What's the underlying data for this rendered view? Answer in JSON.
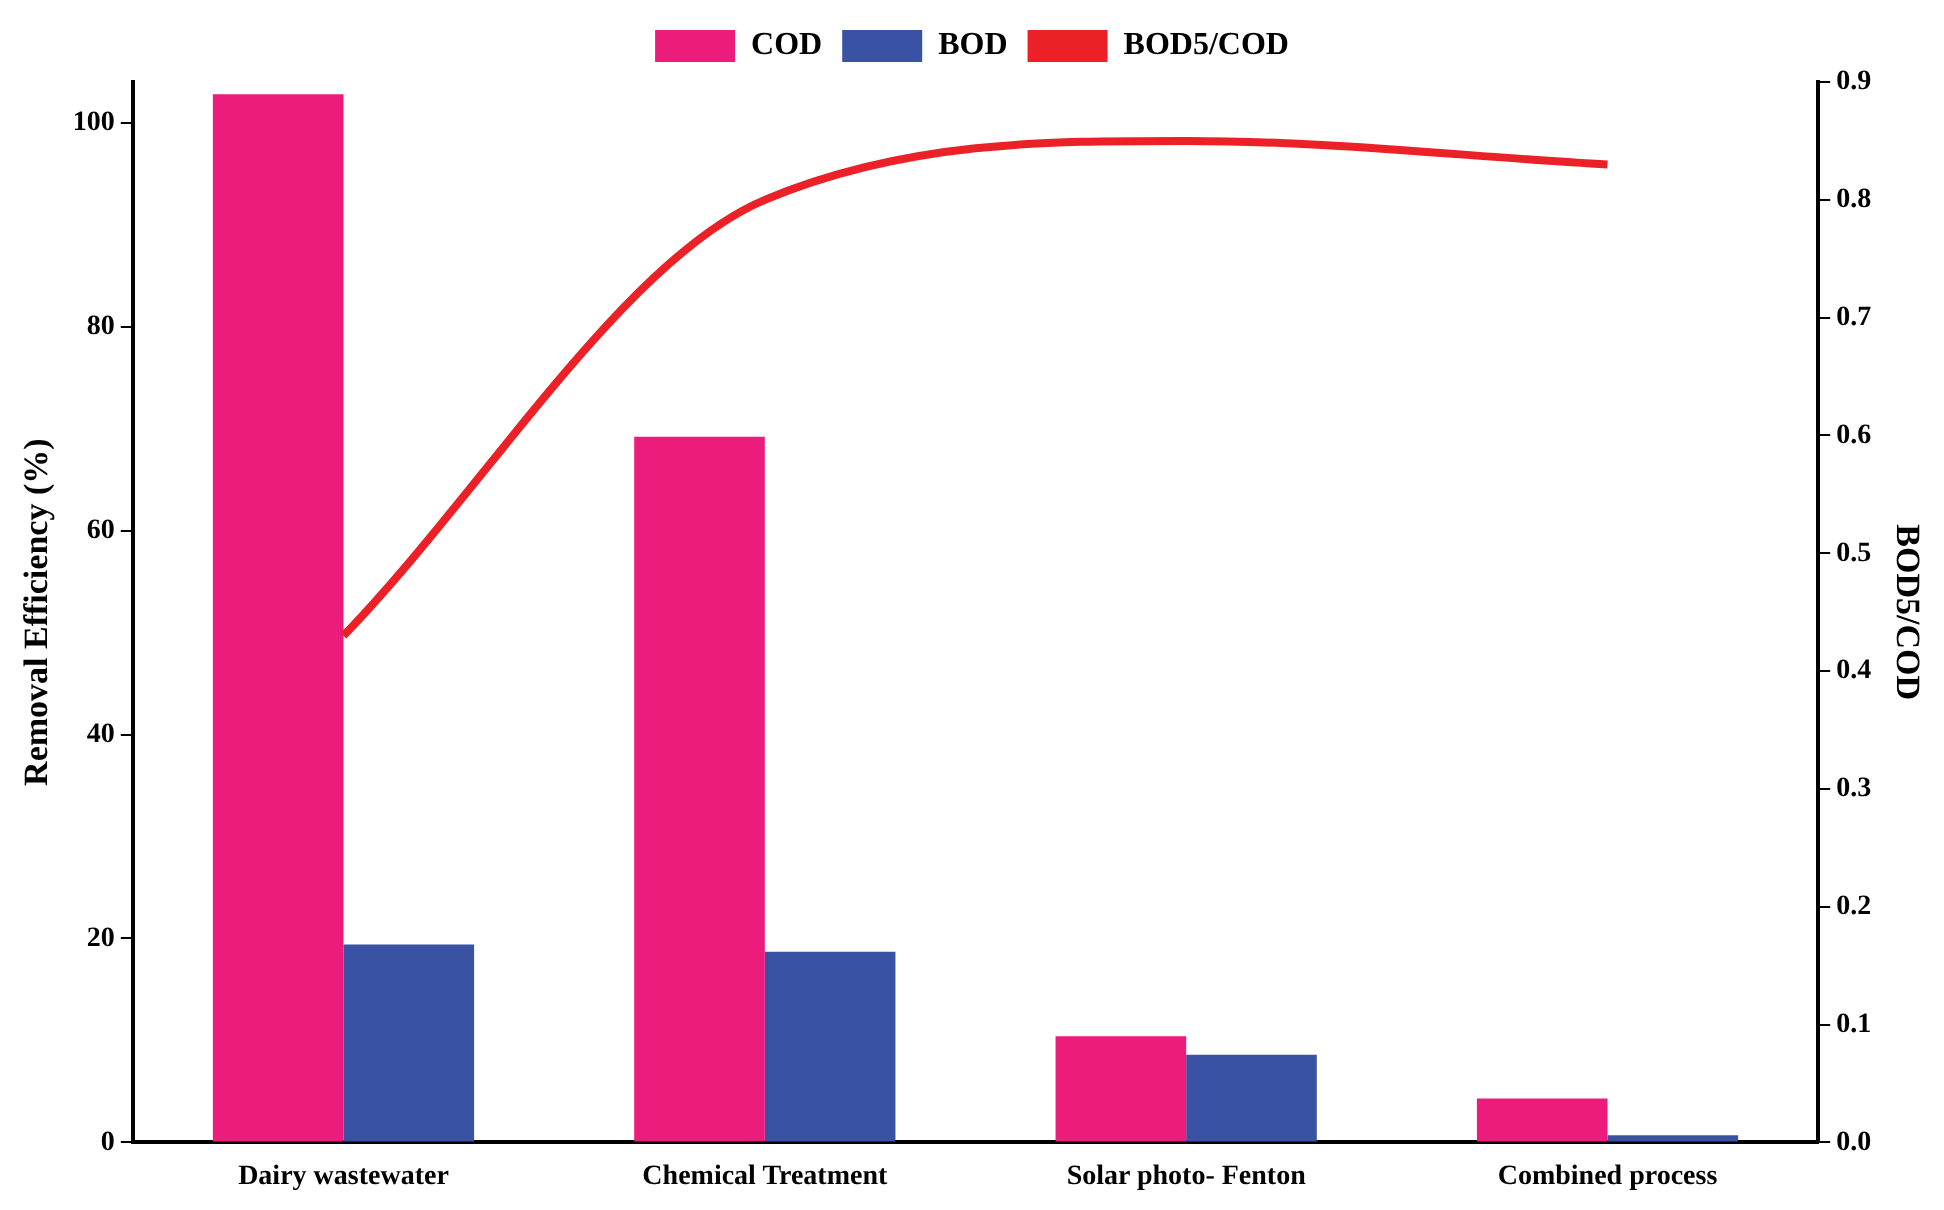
{
  "chart_data": {
    "type": "bar",
    "categories": [
      "Dairy wastewater",
      "Chemical Treatment",
      "Solar photo- Fenton",
      "Combined process"
    ],
    "ylabel": "Removal Efficiency (%)",
    "y2label": "BOD5/COD",
    "series": [
      {
        "name": "COD",
        "color": "#ec1c7c",
        "values": [
          102.8,
          69.2,
          10.4,
          4.3
        ]
      },
      {
        "name": "BOD",
        "color": "#3a52a4",
        "values": [
          19.4,
          18.7,
          8.6,
          0.7
        ]
      },
      {
        "name": "BOD5/COD",
        "type": "line",
        "axis": "y2",
        "color": "#ec2027",
        "values": [
          0.43,
          0.8,
          0.85,
          0.83
        ]
      }
    ],
    "ylim": [
      0,
      104
    ],
    "yticks": [
      0,
      20,
      40,
      60,
      80,
      100
    ],
    "y2lim": [
      0,
      0.9
    ],
    "y2ticks": [
      {
        "value": 0,
        "label": "0.0"
      },
      0.1,
      0.2,
      0.3,
      0.4,
      0.5,
      0.6,
      0.7,
      0.8,
      0.9
    ],
    "grid": false,
    "legend": "top"
  }
}
